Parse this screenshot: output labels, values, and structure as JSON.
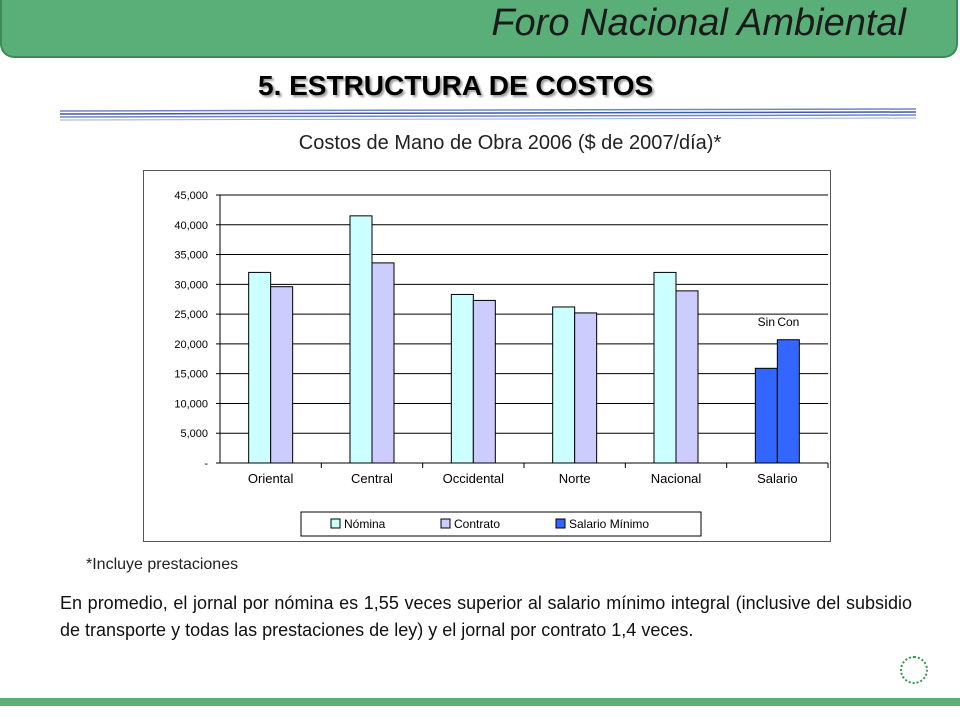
{
  "header": {
    "title": "Foro Nacional Ambiental"
  },
  "section": {
    "title": "5. ESTRUCTURA DE COSTOS"
  },
  "chart_data": {
    "type": "bar",
    "title": "Costos de Mano de Obra 2006 ($ de 2007/día)*",
    "categories": [
      "Oriental",
      "Central",
      "Occidental",
      "Norte",
      "Nacional",
      "Salario"
    ],
    "ylim": [
      0,
      45000
    ],
    "yticks": [
      0,
      5000,
      10000,
      15000,
      20000,
      25000,
      30000,
      35000,
      40000,
      45000
    ],
    "ytick_labels": [
      "-",
      "5,000",
      "10,000",
      "15,000",
      "20,000",
      "25,000",
      "30,000",
      "35,000",
      "40,000",
      "45,000"
    ],
    "grid": true,
    "legend_position": "bottom",
    "series": [
      {
        "name": "Nómina",
        "color": "#ccffff",
        "values": [
          32000,
          41500,
          28300,
          26200,
          32000,
          null
        ]
      },
      {
        "name": "Contrato",
        "color": "#ccccff",
        "values": [
          29600,
          33600,
          27300,
          25200,
          28900,
          null
        ]
      },
      {
        "name": "Salario Mínimo",
        "color": "#3366ff",
        "values": [
          null,
          null,
          null,
          null,
          null,
          [
            15900,
            20700
          ]
        ]
      }
    ],
    "annotations": [
      "Sin",
      "Con"
    ]
  },
  "footnote": "*Incluye prestaciones",
  "paragraph": "En promedio, el jornal por nómina es 1,55 veces superior al salario mínimo integral (inclusive del subsidio de transporte y todas las prestaciones de ley) y el jornal por contrato 1,4 veces.",
  "icons": {
    "bottom_right": "dotted-circle-icon"
  }
}
